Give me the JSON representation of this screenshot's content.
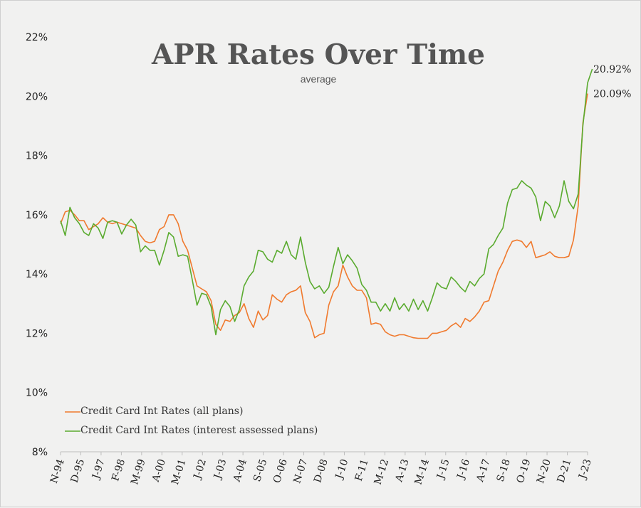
{
  "chart_data": {
    "type": "line",
    "title": "APR Rates Over Time",
    "subtitle": "average",
    "ylim": [
      8,
      22
    ],
    "y_ticks": [
      8,
      10,
      12,
      14,
      16,
      18,
      20,
      22
    ],
    "y_tick_labels": [
      "8%",
      "10%",
      "12%",
      "14%",
      "16%",
      "18%",
      "20%",
      "22%"
    ],
    "x_tick_labels": [
      "N-94",
      "D-95",
      "J-97",
      "F-98",
      "M-99",
      "A-00",
      "M-01",
      "J-02",
      "J-03",
      "A-04",
      "S-05",
      "O-06",
      "N-07",
      "D-08",
      "J-10",
      "F-11",
      "M-12",
      "A-13",
      "M-14",
      "J-15",
      "J-16",
      "A-17",
      "S-18",
      "O-19",
      "N-20",
      "D-21",
      "J-23"
    ],
    "grid": false,
    "legend_position": "bottom-left",
    "colors": {
      "all_plans": "#f07a2e",
      "interest_assessed": "#5aab2f"
    },
    "series": [
      {
        "name": "Credit Card Int Rates (all plans)",
        "color": "#f07a2e",
        "end_label": "20.09%",
        "values": [
          15.7,
          16.1,
          16.15,
          16.0,
          15.8,
          15.8,
          15.5,
          15.6,
          15.7,
          15.9,
          15.75,
          15.7,
          15.75,
          15.7,
          15.65,
          15.6,
          15.55,
          15.3,
          15.1,
          15.05,
          15.1,
          15.5,
          15.6,
          16.0,
          16.0,
          15.7,
          15.1,
          14.8,
          14.2,
          13.6,
          13.5,
          13.4,
          13.1,
          12.3,
          12.1,
          12.45,
          12.4,
          12.6,
          12.7,
          13.0,
          12.5,
          12.2,
          12.75,
          12.45,
          12.6,
          13.3,
          13.15,
          13.05,
          13.3,
          13.4,
          13.45,
          13.6,
          12.7,
          12.4,
          11.85,
          11.95,
          12.0,
          12.95,
          13.4,
          13.6,
          14.3,
          13.9,
          13.6,
          13.45,
          13.45,
          13.2,
          12.3,
          12.35,
          12.3,
          12.05,
          11.95,
          11.9,
          11.95,
          11.95,
          11.9,
          11.85,
          11.83,
          11.83,
          11.83,
          12.0,
          12.0,
          12.05,
          12.1,
          12.25,
          12.35,
          12.2,
          12.5,
          12.4,
          12.55,
          12.75,
          13.05,
          13.1,
          13.6,
          14.1,
          14.4,
          14.8,
          15.1,
          15.15,
          15.1,
          14.9,
          15.1,
          14.55,
          14.6,
          14.65,
          14.75,
          14.6,
          14.55,
          14.55,
          14.6,
          15.15,
          16.3,
          19.1,
          20.09
        ]
      },
      {
        "name": "Credit Card Int Rates (interest assessed plans)",
        "color": "#5aab2f",
        "end_label": "20.92%",
        "values": [
          15.8,
          15.3,
          16.25,
          15.9,
          15.7,
          15.4,
          15.3,
          15.7,
          15.55,
          15.2,
          15.75,
          15.8,
          15.75,
          15.35,
          15.65,
          15.85,
          15.65,
          14.75,
          14.95,
          14.8,
          14.8,
          14.3,
          14.8,
          15.4,
          15.25,
          14.6,
          14.65,
          14.6,
          13.8,
          12.95,
          13.35,
          13.3,
          12.9,
          11.95,
          12.8,
          13.1,
          12.9,
          12.4,
          12.8,
          13.6,
          13.9,
          14.1,
          14.8,
          14.75,
          14.5,
          14.4,
          14.8,
          14.7,
          15.1,
          14.65,
          14.5,
          15.25,
          14.4,
          13.75,
          13.5,
          13.6,
          13.35,
          13.55,
          14.25,
          14.9,
          14.35,
          14.65,
          14.45,
          14.2,
          13.65,
          13.45,
          13.05,
          13.05,
          12.75,
          13.0,
          12.75,
          13.2,
          12.8,
          13.0,
          12.75,
          13.15,
          12.8,
          13.1,
          12.75,
          13.2,
          13.7,
          13.55,
          13.5,
          13.9,
          13.75,
          13.55,
          13.4,
          13.75,
          13.6,
          13.85,
          14.0,
          14.85,
          15.0,
          15.3,
          15.55,
          16.4,
          16.85,
          16.9,
          17.15,
          17.0,
          16.9,
          16.6,
          15.8,
          16.45,
          16.3,
          15.9,
          16.3,
          17.15,
          16.45,
          16.2,
          16.7,
          19.0,
          20.45,
          20.92
        ]
      }
    ]
  }
}
